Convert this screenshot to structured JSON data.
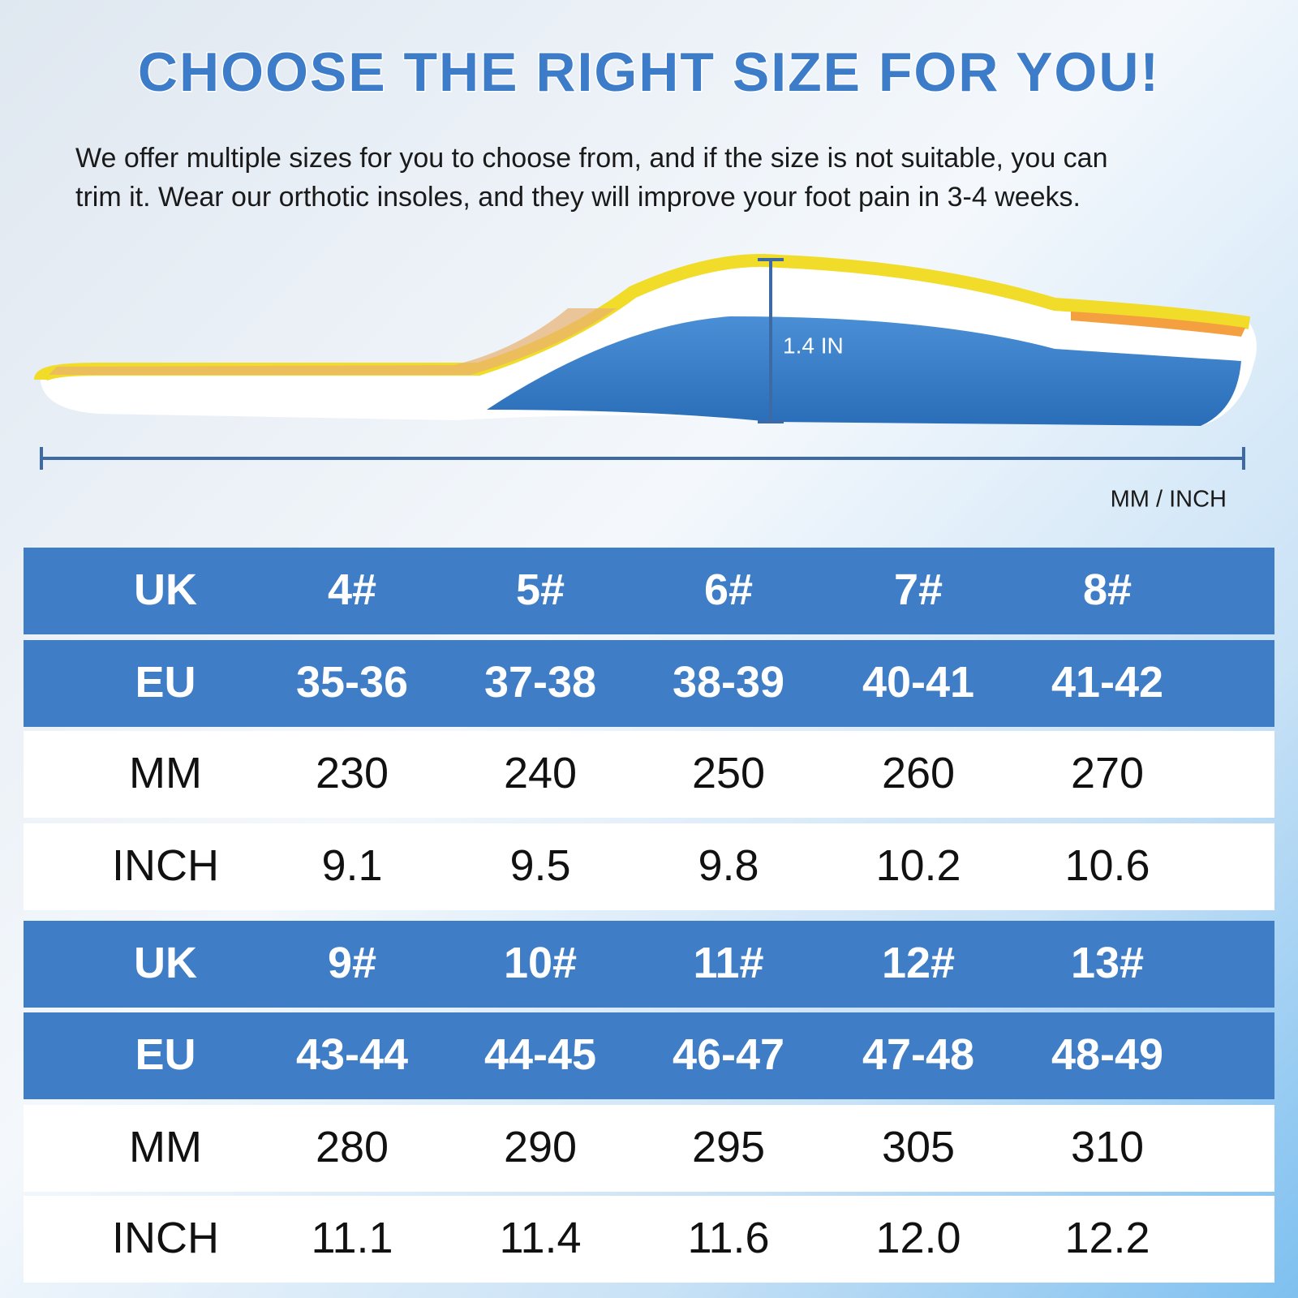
{
  "header": {
    "title": "CHOOSE THE RIGHT SIZE FOR YOU!",
    "description": [
      "We offer multiple sizes for you to choose from, and if the size is not suitable, you can",
      "trim it. Wear our orthotic insoles, and they will improve your foot pain in 3-4 weeks."
    ]
  },
  "illustration": {
    "height_label": "1.4 IN",
    "length_label": "MM / INCH"
  },
  "tables": [
    {
      "rows": [
        [
          "UK",
          "4#",
          "5#",
          "6#",
          "7#",
          "8#"
        ],
        [
          "EU",
          "35-36",
          "37-38",
          "38-39",
          "40-41",
          "41-42"
        ],
        [
          "MM",
          "230",
          "240",
          "250",
          "260",
          "270"
        ],
        [
          "INCH",
          "9.1",
          "9.5",
          "9.8",
          "10.2",
          "10.6"
        ]
      ]
    },
    {
      "rows": [
        [
          "UK",
          "9#",
          "10#",
          "11#",
          "12#",
          "13#"
        ],
        [
          "EU",
          "43-44",
          "44-45",
          "46-47",
          "47-48",
          "48-49"
        ],
        [
          "MM",
          "280",
          "290",
          "295",
          "305",
          "310"
        ],
        [
          "INCH",
          "11.1",
          "11.4",
          "11.6",
          "12.0",
          "12.2"
        ]
      ]
    }
  ]
}
